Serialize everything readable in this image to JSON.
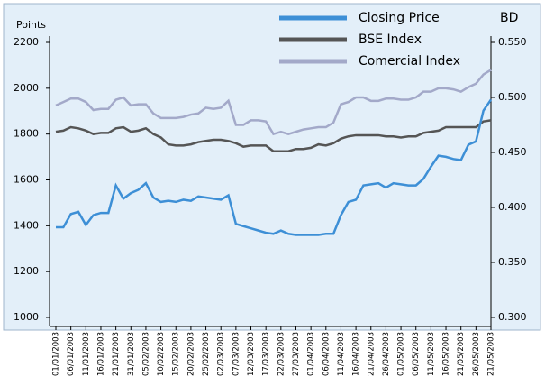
{
  "chart_data": {
    "type": "line",
    "y_label": "Points",
    "y2_label": "BD",
    "categories": [
      "01/01/2003",
      null,
      "06/01/2003",
      null,
      "11/01/2003",
      null,
      "16/01/2003",
      null,
      "21/01/2003",
      null,
      "31/01/2003",
      null,
      "05/02/2003",
      null,
      "10/02/2003",
      null,
      "15/02/2003",
      null,
      "20/02/2003",
      null,
      "25/02/2003",
      null,
      "02/03/2003",
      null,
      "07/03/2003",
      null,
      "12/03/2003",
      null,
      "17/03/2003",
      null,
      "22/03/2003",
      null,
      "27/03/2003",
      null,
      "01/04/2003",
      null,
      "06/04/2003",
      null,
      "11/04/2003",
      null,
      "16/04/2003",
      null,
      "21/04/2003",
      null,
      "26/04/2003",
      null,
      "01/05/2003",
      null,
      "06/05/2003",
      null,
      "11/05/2003",
      null,
      "16/05/2003",
      null,
      "21/05/2003",
      null,
      "26/05/2003",
      null,
      "21/05/2003"
    ],
    "series": [
      {
        "name": "Closing Price",
        "color": "#3d8fd6",
        "axis": "y2",
        "values": [
          0.382,
          0.382,
          0.394,
          0.396,
          0.384,
          0.393,
          0.395,
          0.395,
          0.42,
          0.408,
          0.413,
          0.416,
          0.422,
          0.409,
          0.405,
          0.406,
          0.405,
          0.407,
          0.406,
          0.41,
          0.409,
          0.408,
          0.407,
          0.411,
          0.385,
          0.383,
          0.381,
          0.379,
          0.377,
          0.376,
          0.379,
          0.376,
          0.375,
          0.375,
          0.375,
          0.375,
          0.376,
          0.376,
          0.393,
          0.405,
          0.407,
          0.42,
          0.421,
          0.422,
          0.418,
          0.422,
          0.421,
          0.42,
          0.42,
          0.426,
          0.437,
          0.447,
          0.446,
          0.444,
          0.443,
          0.457,
          0.46,
          0.488,
          0.498
        ]
      },
      {
        "name": "BSE Index",
        "color": "#555555",
        "values": [
          1810,
          1815,
          1830,
          1825,
          1815,
          1800,
          1805,
          1805,
          1825,
          1830,
          1810,
          1815,
          1825,
          1800,
          1785,
          1755,
          1750,
          1750,
          1755,
          1765,
          1770,
          1775,
          1775,
          1770,
          1760,
          1745,
          1750,
          1750,
          1750,
          1725,
          1725,
          1725,
          1735,
          1735,
          1740,
          1755,
          1750,
          1760,
          1780,
          1790,
          1795,
          1795,
          1795,
          1795,
          1790,
          1790,
          1785,
          1790,
          1790,
          1805,
          1810,
          1815,
          1830,
          1830,
          1830,
          1830,
          1830,
          1855,
          1860
        ]
      },
      {
        "name": "Comercial Index",
        "color": "#a3a9c9",
        "values": [
          1925,
          1940,
          1955,
          1955,
          1940,
          1905,
          1910,
          1910,
          1950,
          1960,
          1925,
          1930,
          1930,
          1890,
          1870,
          1870,
          1870,
          1875,
          1885,
          1890,
          1915,
          1910,
          1915,
          1945,
          1840,
          1840,
          1860,
          1860,
          1855,
          1800,
          1810,
          1800,
          1810,
          1820,
          1825,
          1830,
          1830,
          1850,
          1930,
          1940,
          1960,
          1960,
          1945,
          1945,
          1955,
          1955,
          1950,
          1950,
          1960,
          1985,
          1985,
          2000,
          2000,
          1995,
          1985,
          2005,
          2020,
          2060,
          2080
        ]
      }
    ],
    "ylim": [
      1000,
      2200
    ],
    "yticks": [
      1000,
      1200,
      1400,
      1600,
      1800,
      2000,
      2200
    ],
    "y2lim": [
      0.3,
      0.55
    ],
    "y2ticks": [
      {
        "value": 0.3,
        "label": "0.300"
      },
      {
        "value": 0.35,
        "label": "0.350"
      },
      {
        "value": 0.4,
        "label": "0.400"
      },
      {
        "value": 0.45,
        "label": "0.450"
      },
      {
        "value": 0.5,
        "label": "0.500"
      },
      {
        "value": 0.55,
        "label": "0.550"
      }
    ],
    "legend": "upper right"
  }
}
